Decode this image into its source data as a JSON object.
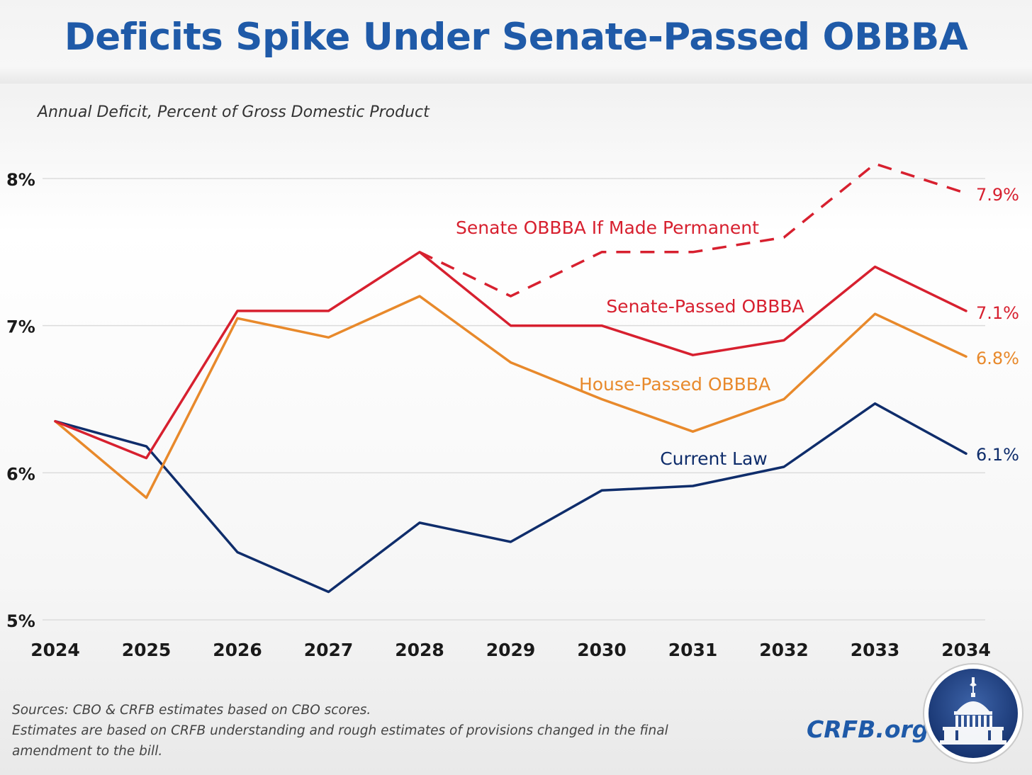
{
  "title": "Deficits Spike Under Senate-Passed OBBBA",
  "subtitle": "Annual Deficit, Percent of Gross Domestic Product",
  "footer": {
    "line1": "Sources: CBO & CRFB estimates based on CBO scores.",
    "line2": "Estimates are based on CRFB understanding and rough estimates of provisions changed in the final",
    "line3": "amendment to the bill."
  },
  "brand": "CRFB.org",
  "colors": {
    "senate_permanent": "#d7202f",
    "senate_passed": "#d7202f",
    "house_passed": "#e8892b",
    "current_law": "#0f2d6b",
    "title": "#1f5aa8"
  },
  "chart_data": {
    "type": "line",
    "title": "Deficits Spike Under Senate-Passed OBBBA",
    "ylabel": "Annual Deficit, Percent of Gross Domestic Product",
    "x": [
      2024,
      2025,
      2026,
      2027,
      2028,
      2029,
      2030,
      2031,
      2032,
      2033,
      2034
    ],
    "ylim": [
      5,
      8.2
    ],
    "yticks": [
      5,
      6,
      7,
      8
    ],
    "ytick_labels": [
      "5%",
      "6%",
      "7%",
      "8%"
    ],
    "xtick_labels": [
      "2024",
      "2025",
      "2026",
      "2027",
      "2028",
      "2029",
      "2030",
      "2031",
      "2032",
      "2033",
      "2034"
    ],
    "grid": true,
    "series": [
      {
        "name": "Senate OBBBA If Made Permanent",
        "style": "dashed",
        "x": [
          2028,
          2029,
          2030,
          2031,
          2032,
          2033,
          2034
        ],
        "values": [
          7.5,
          7.2,
          7.5,
          7.5,
          7.6,
          8.1,
          7.9
        ],
        "end_label": "7.9%"
      },
      {
        "name": "Senate-Passed OBBBA",
        "style": "solid",
        "x": [
          2024,
          2025,
          2026,
          2027,
          2028,
          2029,
          2030,
          2031,
          2032,
          2033,
          2034
        ],
        "values": [
          6.35,
          6.1,
          7.1,
          7.1,
          7.5,
          7.0,
          7.0,
          6.8,
          6.9,
          7.4,
          7.1
        ],
        "end_label": "7.1%"
      },
      {
        "name": "House-Passed OBBBA",
        "style": "solid",
        "x": [
          2024,
          2025,
          2026,
          2027,
          2028,
          2029,
          2030,
          2031,
          2032,
          2033,
          2034
        ],
        "values": [
          6.35,
          5.83,
          7.05,
          6.92,
          7.2,
          6.75,
          6.5,
          6.28,
          6.5,
          7.08,
          6.79
        ],
        "end_label": "6.8%"
      },
      {
        "name": "Current Law",
        "style": "solid",
        "x": [
          2024,
          2025,
          2026,
          2027,
          2028,
          2029,
          2030,
          2031,
          2032,
          2033,
          2034
        ],
        "values": [
          6.35,
          6.18,
          5.46,
          5.19,
          5.66,
          5.53,
          5.88,
          5.91,
          6.04,
          6.47,
          6.13
        ],
        "end_label": "6.1%"
      }
    ]
  }
}
